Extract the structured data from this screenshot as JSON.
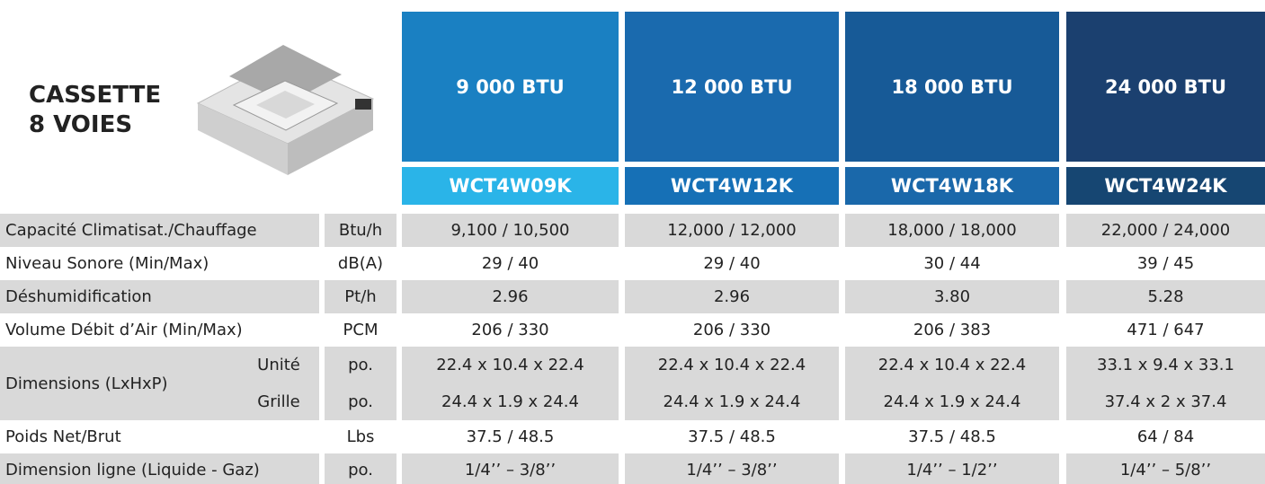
{
  "header": {
    "title_lines": [
      "CASSETTE",
      "8 VOIES"
    ]
  },
  "columns": [
    {
      "capacity": "9 000 BTU",
      "model": "WCT4W09K"
    },
    {
      "capacity": "12 000 BTU",
      "model": "WCT4W12K"
    },
    {
      "capacity": "18 000 BTU",
      "model": "WCT4W18K"
    },
    {
      "capacity": "24 000 BTU",
      "model": "WCT4W24K"
    }
  ],
  "rows": [
    {
      "label": "Capacité Climatisat./Chauffage",
      "unit": "Btu/h",
      "values": [
        "9,100 / 10,500",
        "12,000 / 12,000",
        "18,000 / 18,000",
        "22,000 / 24,000"
      ]
    },
    {
      "label": "Niveau Sonore (Min/Max)",
      "unit": "dB(A)",
      "values": [
        "29 / 40",
        "29 / 40",
        "30 / 44",
        "39 / 45"
      ]
    },
    {
      "label": "Déshumidification",
      "unit": "Pt/h",
      "values": [
        "2.96",
        "2.96",
        "3.80",
        "5.28"
      ]
    },
    {
      "label": "Volume Débit d’Air (Min/Max)",
      "unit": "PCM",
      "values": [
        "206 / 330",
        "206 / 330",
        "206 / 383",
        "471 / 647"
      ]
    },
    {
      "label": "Dimensions (LxHxP)",
      "sub": [
        {
          "label": "Unité",
          "unit": "po.",
          "values": [
            "22.4 x 10.4 x 22.4",
            "22.4 x 10.4 x 22.4",
            "22.4 x 10.4 x 22.4",
            "33.1 x 9.4 x 33.1"
          ]
        },
        {
          "label": "Grille",
          "unit": "po.",
          "values": [
            "24.4 x 1.9 x 24.4",
            "24.4 x 1.9 x 24.4",
            "24.4 x 1.9 x 24.4",
            "37.4 x 2 x 37.4"
          ]
        }
      ]
    },
    {
      "label": "Poids Net/Brut",
      "unit": "Lbs",
      "values": [
        "37.5 / 48.5",
        "37.5 / 48.5",
        "37.5 / 48.5",
        "64 / 84"
      ]
    },
    {
      "label": "Dimension ligne (Liquide - Gaz)",
      "unit": "po.",
      "values": [
        "1/4’’ – 3/8’’",
        "1/4’’ – 3/8’’",
        "1/4’’ – 1/2’’",
        "1/4’’ – 5/8’’"
      ]
    }
  ]
}
